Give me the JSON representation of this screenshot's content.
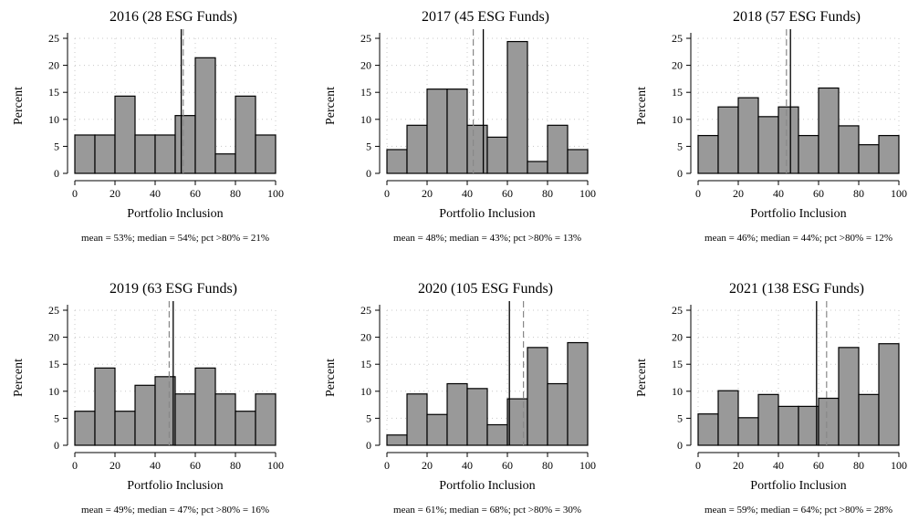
{
  "figure": {
    "background": "#ffffff",
    "bar_fill": "#999999",
    "bar_stroke": "#000000"
  },
  "chart_data": [
    {
      "type": "bar",
      "title": "2016 (28 ESG Funds)",
      "xlabel": "Portfolio Inclusion",
      "ylabel": "Percent",
      "bin_edges": [
        0,
        10,
        20,
        30,
        40,
        50,
        60,
        70,
        80,
        90,
        100
      ],
      "values": [
        7.1,
        7.1,
        14.3,
        7.1,
        7.1,
        10.7,
        21.4,
        3.6,
        14.3,
        7.1
      ],
      "xlim": [
        0,
        100
      ],
      "ylim": [
        0,
        25
      ],
      "xticks": [
        "0",
        "20",
        "40",
        "60",
        "80",
        "100"
      ],
      "yticks": [
        "0",
        "5",
        "10",
        "15",
        "20",
        "25"
      ],
      "mean": 53,
      "median": 54,
      "stats_text": "mean = 53%; median = 54%; pct >80% = 21%"
    },
    {
      "type": "bar",
      "title": "2017 (45 ESG Funds)",
      "xlabel": "Portfolio Inclusion",
      "ylabel": "Percent",
      "bin_edges": [
        0,
        10,
        20,
        30,
        40,
        50,
        60,
        70,
        80,
        90,
        100
      ],
      "values": [
        4.4,
        8.9,
        15.6,
        15.6,
        8.9,
        6.7,
        24.4,
        2.2,
        8.9,
        4.4
      ],
      "xlim": [
        0,
        100
      ],
      "ylim": [
        0,
        25
      ],
      "xticks": [
        "0",
        "20",
        "40",
        "60",
        "80",
        "100"
      ],
      "yticks": [
        "0",
        "5",
        "10",
        "15",
        "20",
        "25"
      ],
      "mean": 48,
      "median": 43,
      "stats_text": "mean = 48%; median = 43%; pct >80% = 13%"
    },
    {
      "type": "bar",
      "title": "2018 (57 ESG Funds)",
      "xlabel": "Portfolio Inclusion",
      "ylabel": "Percent",
      "bin_edges": [
        0,
        10,
        20,
        30,
        40,
        50,
        60,
        70,
        80,
        90,
        100
      ],
      "values": [
        7.0,
        12.3,
        14.0,
        10.5,
        12.3,
        7.0,
        15.8,
        8.8,
        5.3,
        7.0
      ],
      "xlim": [
        0,
        100
      ],
      "ylim": [
        0,
        25
      ],
      "xticks": [
        "0",
        "20",
        "40",
        "60",
        "80",
        "100"
      ],
      "yticks": [
        "0",
        "5",
        "10",
        "15",
        "20",
        "25"
      ],
      "mean": 46,
      "median": 44,
      "stats_text": "mean = 46%; median = 44%; pct >80% = 12%"
    },
    {
      "type": "bar",
      "title": "2019 (63 ESG Funds)",
      "xlabel": "Portfolio Inclusion",
      "ylabel": "Percent",
      "bin_edges": [
        0,
        10,
        20,
        30,
        40,
        50,
        60,
        70,
        80,
        90,
        100
      ],
      "values": [
        6.3,
        14.3,
        6.3,
        11.1,
        12.7,
        9.5,
        14.3,
        9.5,
        6.3,
        9.5
      ],
      "xlim": [
        0,
        100
      ],
      "ylim": [
        0,
        25
      ],
      "xticks": [
        "0",
        "20",
        "40",
        "60",
        "80",
        "100"
      ],
      "yticks": [
        "0",
        "5",
        "10",
        "15",
        "20",
        "25"
      ],
      "mean": 49,
      "median": 47,
      "stats_text": "mean = 49%; median = 47%; pct >80% = 16%"
    },
    {
      "type": "bar",
      "title": "2020 (105 ESG Funds)",
      "xlabel": "Portfolio Inclusion",
      "ylabel": "Percent",
      "bin_edges": [
        0,
        10,
        20,
        30,
        40,
        50,
        60,
        70,
        80,
        90,
        100
      ],
      "values": [
        1.9,
        9.5,
        5.7,
        11.4,
        10.5,
        3.8,
        8.6,
        18.1,
        11.4,
        19.0
      ],
      "xlim": [
        0,
        100
      ],
      "ylim": [
        0,
        25
      ],
      "xticks": [
        "0",
        "20",
        "40",
        "60",
        "80",
        "100"
      ],
      "yticks": [
        "0",
        "5",
        "10",
        "15",
        "20",
        "25"
      ],
      "mean": 61,
      "median": 68,
      "stats_text": "mean = 61%; median = 68%; pct >80% = 30%"
    },
    {
      "type": "bar",
      "title": "2021 (138 ESG Funds)",
      "xlabel": "Portfolio Inclusion",
      "ylabel": "Percent",
      "bin_edges": [
        0,
        10,
        20,
        30,
        40,
        50,
        60,
        70,
        80,
        90,
        100
      ],
      "values": [
        5.8,
        10.1,
        5.1,
        9.4,
        7.2,
        7.2,
        8.7,
        18.1,
        9.4,
        18.8
      ],
      "xlim": [
        0,
        100
      ],
      "ylim": [
        0,
        25
      ],
      "xticks": [
        "0",
        "20",
        "40",
        "60",
        "80",
        "100"
      ],
      "yticks": [
        "0",
        "5",
        "10",
        "15",
        "20",
        "25"
      ],
      "mean": 59,
      "median": 64,
      "stats_text": "mean = 59%; median = 64%; pct >80% = 28%"
    }
  ]
}
